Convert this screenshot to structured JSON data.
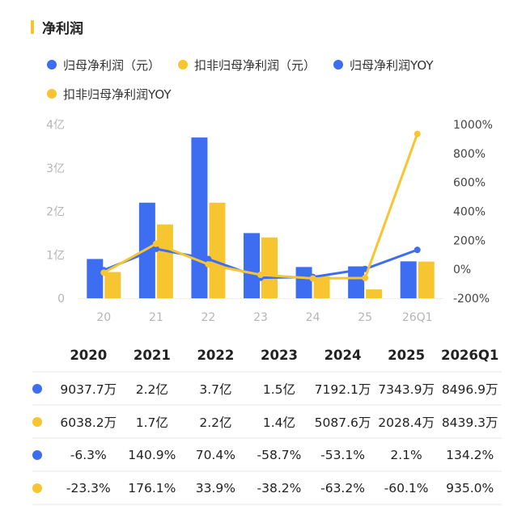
{
  "header": {
    "title": "净利润"
  },
  "colors": {
    "blue": "#3d6df0",
    "yellow": "#f7c530",
    "accent_bar": "#f5c42c"
  },
  "legend": [
    {
      "label": "归母净利润（元）",
      "color": "#3d6df0"
    },
    {
      "label": "扣非归母净利润（元）",
      "color": "#f7c530"
    },
    {
      "label": "归母净利润YOY",
      "color": "#3d6df0"
    },
    {
      "label": "扣非归母净利润YOY",
      "color": "#f7c530"
    }
  ],
  "chart_data": {
    "type": "bar",
    "categories": [
      "20",
      "21",
      "22",
      "23",
      "24",
      "25",
      "26Q1"
    ],
    "left_axis": {
      "ticks": [
        "0",
        "1亿",
        "2亿",
        "3亿",
        "4亿"
      ],
      "unit": "亿",
      "ylim": [
        0,
        4
      ]
    },
    "right_axis": {
      "ticks": [
        "-200%",
        "0%",
        "200%",
        "400%",
        "600%",
        "800%",
        "1000%"
      ],
      "ylim": [
        -200,
        1000
      ]
    },
    "series": [
      {
        "name": "归母净利润（元）",
        "kind": "bar",
        "axis": "left",
        "color": "#3d6df0",
        "values": [
          0.90377,
          2.2,
          3.7,
          1.5,
          0.71921,
          0.73439,
          0.84969
        ]
      },
      {
        "name": "扣非归母净利润（元）",
        "kind": "bar",
        "axis": "left",
        "color": "#f7c530",
        "values": [
          0.60382,
          1.7,
          2.2,
          1.4,
          0.50876,
          0.20284,
          0.84393
        ]
      },
      {
        "name": "归母净利润YOY",
        "kind": "line",
        "axis": "right",
        "color": "#3d6df0",
        "values": [
          -6.3,
          140.9,
          70.4,
          -58.7,
          -53.1,
          2.1,
          134.2
        ]
      },
      {
        "name": "扣非归母净利润YOY",
        "kind": "line",
        "axis": "right",
        "color": "#f7c530",
        "values": [
          -23.3,
          176.1,
          33.9,
          -38.2,
          -63.2,
          -60.1,
          935.0
        ]
      }
    ],
    "grid": false,
    "legend_position": "top"
  },
  "table": {
    "headers": [
      "2020",
      "2021",
      "2022",
      "2023",
      "2024",
      "2025",
      "2026Q1"
    ],
    "rows": [
      {
        "color": "#3d6df0",
        "cells": [
          "9037.7万",
          "2.2亿",
          "3.7亿",
          "1.5亿",
          "7192.1万",
          "7343.9万",
          "8496.9万"
        ]
      },
      {
        "color": "#f7c530",
        "cells": [
          "6038.2万",
          "1.7亿",
          "2.2亿",
          "1.4亿",
          "5087.6万",
          "2028.4万",
          "8439.3万"
        ]
      },
      {
        "color": "#3d6df0",
        "cells": [
          "-6.3%",
          "140.9%",
          "70.4%",
          "-58.7%",
          "-53.1%",
          "2.1%",
          "134.2%"
        ]
      },
      {
        "color": "#f7c530",
        "cells": [
          "-23.3%",
          "176.1%",
          "33.9%",
          "-38.2%",
          "-63.2%",
          "-60.1%",
          "935.0%"
        ]
      }
    ]
  }
}
